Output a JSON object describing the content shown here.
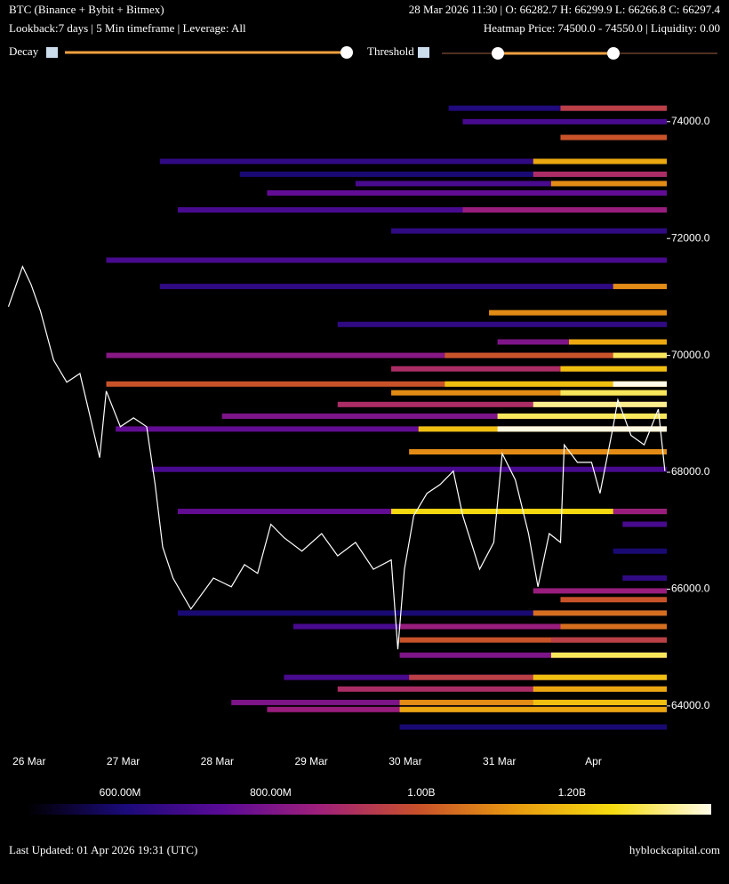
{
  "chart_data": {
    "type": "heatmap",
    "title": "BTC (Binance + Bybit + Bitmex)",
    "ohlc": "28 Mar 2026 11:30 | O: 66282.7 H: 66299.9 L: 66266.8 C: 66297.4",
    "subtitle": "Lookback:7 days | 5 Min timeframe | Leverage: All",
    "hover": "Heatmap Price: 74500.0 - 74550.0 | Liquidity: 0.00",
    "controls": [
      "Decay",
      "Threshold"
    ],
    "footer": "Last Updated: 01 Apr 2026 19:31 (UTC)",
    "source": "hyblockcapital.com",
    "xlim": [
      25.69,
      32.78
    ],
    "xticks": [
      {
        "value": 26,
        "label": "26 Mar"
      },
      {
        "value": 27,
        "label": "27 Mar"
      },
      {
        "value": 28,
        "label": "28 Mar"
      },
      {
        "value": 29,
        "label": "29 Mar"
      },
      {
        "value": 30,
        "label": "30 Mar"
      },
      {
        "value": 31,
        "label": "31 Mar"
      },
      {
        "value": 32,
        "label": "Apr"
      }
    ],
    "ylim": [
      63450,
      74560
    ],
    "yticks": [
      {
        "value": 64000,
        "label": "64000.0"
      },
      {
        "value": 66000,
        "label": "66000.0"
      },
      {
        "value": 68000,
        "label": "68000.0"
      },
      {
        "value": 70000,
        "label": "70000.0"
      },
      {
        "value": 72000,
        "label": "72000.0"
      },
      {
        "value": 74000,
        "label": "74000.0"
      }
    ],
    "price": {
      "color": "#ffffff",
      "x": [
        25.78,
        25.93,
        26.02,
        26.12,
        26.26,
        26.4,
        26.54,
        26.64,
        26.75,
        26.82,
        26.97,
        27.11,
        27.25,
        27.34,
        27.42,
        27.53,
        27.72,
        27.96,
        28.15,
        28.29,
        28.43,
        28.57,
        28.71,
        28.9,
        29.11,
        29.28,
        29.47,
        29.66,
        29.85,
        29.92,
        29.99,
        30.09,
        30.23,
        30.37,
        30.51,
        30.61,
        30.79,
        30.94,
        31.03,
        31.17,
        31.31,
        31.41,
        31.53,
        31.65,
        31.69,
        31.83,
        31.98,
        32.07,
        32.21,
        32.26,
        32.4,
        32.54,
        32.69,
        32.76
      ],
      "values": [
        70835,
        71520,
        71215,
        70760,
        69920,
        69540,
        69690,
        69010,
        68250,
        69390,
        68780,
        68930,
        68780,
        67790,
        66720,
        66190,
        65660,
        66190,
        66040,
        66420,
        66270,
        67110,
        66880,
        66650,
        66950,
        66570,
        66800,
        66340,
        66500,
        64970,
        66340,
        67260,
        67640,
        67790,
        68020,
        67260,
        66340,
        66800,
        68320,
        67870,
        66950,
        66040,
        66950,
        66800,
        68470,
        68170,
        68170,
        67640,
        68780,
        69240,
        68630,
        68470,
        69080,
        68020
      ]
    },
    "bands": [
      {
        "price": 74230,
        "start": 30.46,
        "value": 620000000
      },
      {
        "price": 74230,
        "start": 31.65,
        "value": 950000000
      },
      {
        "price": 74000,
        "start": 30.61,
        "value": 700000000
      },
      {
        "price": 73730,
        "start": 31.65,
        "value": 1000000000
      },
      {
        "price": 73320,
        "start": 27.39,
        "value": 650000000
      },
      {
        "price": 73320,
        "start": 31.36,
        "value": 1150000000
      },
      {
        "price": 73100,
        "start": 28.24,
        "value": 600000000
      },
      {
        "price": 73100,
        "start": 31.36,
        "value": 900000000
      },
      {
        "price": 72940,
        "start": 29.47,
        "value": 700000000
      },
      {
        "price": 72940,
        "start": 31.55,
        "value": 1100000000
      },
      {
        "price": 72780,
        "start": 28.53,
        "value": 750000000
      },
      {
        "price": 72490,
        "start": 27.58,
        "value": 700000000
      },
      {
        "price": 72490,
        "start": 30.61,
        "value": 850000000
      },
      {
        "price": 72130,
        "start": 29.85,
        "value": 650000000
      },
      {
        "price": 71630,
        "start": 26.82,
        "value": 700000000
      },
      {
        "price": 71180,
        "start": 27.39,
        "value": 650000000
      },
      {
        "price": 71180,
        "start": 32.21,
        "value": 1100000000
      },
      {
        "price": 70730,
        "start": 30.89,
        "value": 1100000000
      },
      {
        "price": 70530,
        "start": 29.28,
        "value": 650000000
      },
      {
        "price": 70230,
        "start": 30.98,
        "value": 800000000
      },
      {
        "price": 70230,
        "start": 31.74,
        "value": 1150000000
      },
      {
        "price": 70000,
        "start": 26.82,
        "value": 820000000
      },
      {
        "price": 70000,
        "start": 30.42,
        "value": 1000000000
      },
      {
        "price": 70000,
        "start": 32.21,
        "value": 1300000000
      },
      {
        "price": 69770,
        "start": 29.85,
        "value": 900000000
      },
      {
        "price": 69770,
        "start": 31.65,
        "value": 1200000000
      },
      {
        "price": 69510,
        "start": 26.82,
        "value": 1000000000
      },
      {
        "price": 69510,
        "start": 30.42,
        "value": 1200000000
      },
      {
        "price": 69510,
        "start": 32.21,
        "value": 1385000000
      },
      {
        "price": 69360,
        "start": 29.85,
        "value": 1100000000
      },
      {
        "price": 69360,
        "start": 31.65,
        "value": 1300000000
      },
      {
        "price": 69160,
        "start": 29.28,
        "value": 900000000
      },
      {
        "price": 69160,
        "start": 31.36,
        "value": 1330000000
      },
      {
        "price": 68960,
        "start": 28.05,
        "value": 800000000
      },
      {
        "price": 68960,
        "start": 30.98,
        "value": 1300000000
      },
      {
        "price": 68740,
        "start": 26.92,
        "value": 750000000
      },
      {
        "price": 68740,
        "start": 30.14,
        "value": 1200000000
      },
      {
        "price": 68740,
        "start": 30.98,
        "value": 1380000000
      },
      {
        "price": 68350,
        "start": 30.04,
        "value": 1100000000
      },
      {
        "price": 68050,
        "start": 27.3,
        "value": 700000000
      },
      {
        "price": 67330,
        "start": 27.58,
        "value": 750000000
      },
      {
        "price": 67330,
        "start": 29.85,
        "value": 1250000000
      },
      {
        "price": 67330,
        "start": 32.21,
        "value": 850000000
      },
      {
        "price": 67110,
        "start": 32.31,
        "value": 700000000
      },
      {
        "price": 66650,
        "start": 32.21,
        "value": 600000000
      },
      {
        "price": 66190,
        "start": 32.31,
        "value": 650000000
      },
      {
        "price": 65970,
        "start": 31.36,
        "value": 850000000
      },
      {
        "price": 65820,
        "start": 31.65,
        "value": 1000000000
      },
      {
        "price": 65590,
        "start": 27.58,
        "value": 600000000
      },
      {
        "price": 65590,
        "start": 31.36,
        "value": 1050000000
      },
      {
        "price": 65360,
        "start": 28.81,
        "value": 700000000
      },
      {
        "price": 65360,
        "start": 29.94,
        "value": 850000000
      },
      {
        "price": 65360,
        "start": 31.65,
        "value": 1050000000
      },
      {
        "price": 65130,
        "start": 29.94,
        "value": 1000000000
      },
      {
        "price": 65130,
        "start": 31.55,
        "value": 950000000
      },
      {
        "price": 64870,
        "start": 29.94,
        "value": 800000000
      },
      {
        "price": 64870,
        "start": 31.55,
        "value": 1300000000
      },
      {
        "price": 64490,
        "start": 28.71,
        "value": 700000000
      },
      {
        "price": 64490,
        "start": 30.04,
        "value": 950000000
      },
      {
        "price": 64490,
        "start": 31.36,
        "value": 1200000000
      },
      {
        "price": 64290,
        "start": 29.28,
        "value": 900000000
      },
      {
        "price": 64290,
        "start": 31.36,
        "value": 1150000000
      },
      {
        "price": 64060,
        "start": 28.15,
        "value": 800000000
      },
      {
        "price": 64060,
        "start": 29.94,
        "value": 1100000000
      },
      {
        "price": 64060,
        "start": 31.36,
        "value": 1200000000
      },
      {
        "price": 63940,
        "start": 28.53,
        "value": 850000000
      },
      {
        "price": 63940,
        "start": 29.94,
        "value": 1150000000
      },
      {
        "price": 63640,
        "start": 29.94,
        "value": 600000000
      }
    ],
    "colorscale": [
      "#000000",
      "#1a0a78",
      "#5a0a96",
      "#a0207a",
      "#c8502a",
      "#e89a10",
      "#f5dc10",
      "#fffbe8"
    ],
    "clim": [
      476000000,
      1385000000
    ],
    "cticks": [
      {
        "value": 600000000,
        "label": "600.00M"
      },
      {
        "value": 800000000,
        "label": "800.00M"
      },
      {
        "value": 1000000000,
        "label": "1.00B"
      },
      {
        "value": 1200000000,
        "label": "1.20B"
      }
    ]
  }
}
